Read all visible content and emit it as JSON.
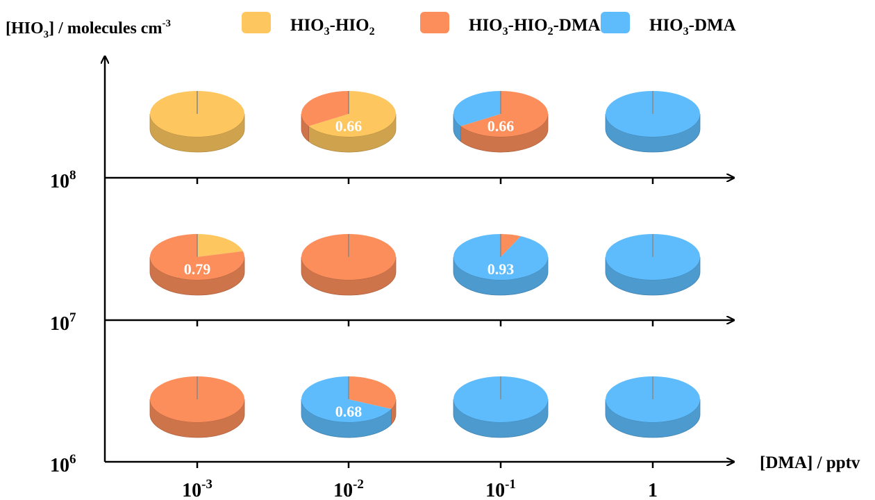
{
  "chart_data": {
    "type": "pie",
    "y_axis_title": {
      "base": "[HIO",
      "sub": "3",
      "rest": "] / molecules cm",
      "sup": "-3"
    },
    "x_axis_title": "[DMA] / pptv",
    "y_ticks": [
      {
        "base": "10",
        "exp": "8"
      },
      {
        "base": "10",
        "exp": "7"
      },
      {
        "base": "10",
        "exp": "6"
      }
    ],
    "x_ticks": [
      {
        "base": "10",
        "exp": "-3"
      },
      {
        "base": "10",
        "exp": "-2"
      },
      {
        "base": "10",
        "exp": "-1"
      },
      {
        "base": "1",
        "exp": ""
      }
    ],
    "legend_position": "top",
    "legend": [
      {
        "key": "hio3_hio2",
        "parts": [
          [
            "HIO",
            ""
          ],
          [
            "3",
            "sub"
          ],
          [
            "-HIO",
            ""
          ],
          [
            "2",
            "sub"
          ]
        ],
        "color": "#FDC65F"
      },
      {
        "key": "hio3_hio2_dma",
        "parts": [
          [
            "HIO",
            ""
          ],
          [
            "3",
            "sub"
          ],
          [
            "-HIO",
            ""
          ],
          [
            "2",
            "sub"
          ],
          [
            "-DMA",
            ""
          ]
        ],
        "color": "#FB8E5B"
      },
      {
        "key": "hio3_dma",
        "parts": [
          [
            "HIO",
            ""
          ],
          [
            "3",
            "sub"
          ],
          [
            "-DMA",
            ""
          ]
        ],
        "color": "#5EBCFC"
      }
    ],
    "pies": [
      {
        "row": 0,
        "col": 0,
        "fractions": {
          "hio3_hio2": 1.0,
          "hio3_hio2_dma": 0,
          "hio3_dma": 0
        },
        "label": ""
      },
      {
        "row": 0,
        "col": 1,
        "fractions": {
          "hio3_hio2": 0.66,
          "hio3_hio2_dma": 0.34,
          "hio3_dma": 0
        },
        "label": "0.66",
        "label_series": "hio3_hio2"
      },
      {
        "row": 0,
        "col": 2,
        "fractions": {
          "hio3_hio2": 0,
          "hio3_hio2_dma": 0.66,
          "hio3_dma": 0.34
        },
        "label": "0.66",
        "label_series": "hio3_hio2_dma"
      },
      {
        "row": 0,
        "col": 3,
        "fractions": {
          "hio3_hio2": 0,
          "hio3_hio2_dma": 0,
          "hio3_dma": 1.0
        },
        "label": ""
      },
      {
        "row": 1,
        "col": 0,
        "fractions": {
          "hio3_hio2": 0.21,
          "hio3_hio2_dma": 0.79,
          "hio3_dma": 0
        },
        "label": "0.79",
        "label_series": "hio3_hio2_dma"
      },
      {
        "row": 1,
        "col": 1,
        "fractions": {
          "hio3_hio2": 0,
          "hio3_hio2_dma": 1.0,
          "hio3_dma": 0
        },
        "label": ""
      },
      {
        "row": 1,
        "col": 2,
        "fractions": {
          "hio3_hio2": 0,
          "hio3_hio2_dma": 0.07,
          "hio3_dma": 0.93
        },
        "label": "0.93",
        "label_series": "hio3_dma"
      },
      {
        "row": 1,
        "col": 3,
        "fractions": {
          "hio3_hio2": 0,
          "hio3_hio2_dma": 0,
          "hio3_dma": 1.0
        },
        "label": ""
      },
      {
        "row": 2,
        "col": 0,
        "fractions": {
          "hio3_hio2": 0,
          "hio3_hio2_dma": 1.0,
          "hio3_dma": 0
        },
        "label": ""
      },
      {
        "row": 2,
        "col": 1,
        "fractions": {
          "hio3_hio2": 0,
          "hio3_hio2_dma": 0.32,
          "hio3_dma": 0.68
        },
        "label": "0.68",
        "label_series": "hio3_dma"
      },
      {
        "row": 2,
        "col": 2,
        "fractions": {
          "hio3_hio2": 0,
          "hio3_hio2_dma": 0,
          "hio3_dma": 1.0
        },
        "label": ""
      },
      {
        "row": 2,
        "col": 3,
        "fractions": {
          "hio3_hio2": 0,
          "hio3_hio2_dma": 0,
          "hio3_dma": 1.0
        },
        "label": ""
      }
    ]
  }
}
